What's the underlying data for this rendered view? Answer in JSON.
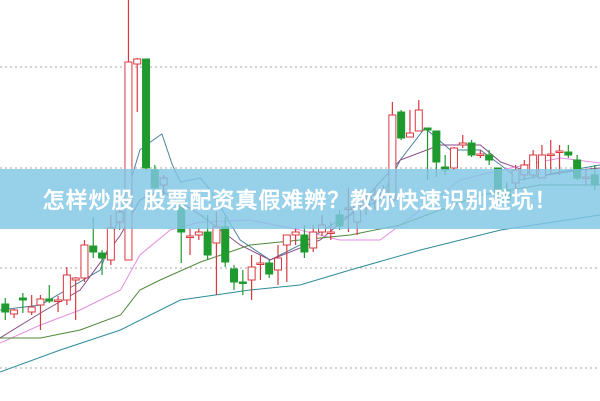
{
  "banner": {
    "title": "怎样炒股 股票配资真假难辨？教你快速识别避坑！"
  },
  "colors": {
    "up": "#d9383f",
    "down": "#1f9a2e",
    "grid": "#aaaaaa",
    "banner": "#80c6e4"
  },
  "chart_data": {
    "type": "candlestick",
    "title": "",
    "xlabel": "",
    "ylabel": "",
    "xlim": [
      -0.6,
      67.6
    ],
    "ylim": [
      0,
      400
    ],
    "grid": "horizontal dotted",
    "gridlines": [
      333,
      232,
      132,
      32
    ],
    "candle_fields": [
      "t",
      "open",
      "high",
      "low",
      "close"
    ],
    "candles": [
      [
        0,
        96,
        102,
        80,
        88
      ],
      [
        1,
        86,
        91,
        82,
        90
      ],
      [
        2,
        102,
        107,
        87,
        100
      ],
      [
        3,
        88,
        105,
        85,
        93
      ],
      [
        4,
        95,
        105,
        70,
        101
      ],
      [
        5,
        101,
        115,
        97,
        99
      ],
      [
        6,
        100,
        104,
        88,
        100
      ],
      [
        7,
        100,
        133,
        95,
        125
      ],
      [
        8,
        120,
        123,
        80,
        122
      ],
      [
        9,
        122,
        160,
        118,
        155
      ],
      [
        10,
        154,
        183,
        142,
        148
      ],
      [
        11,
        147,
        150,
        125,
        142
      ],
      [
        12,
        140,
        185,
        135,
        172
      ],
      [
        13,
        178,
        195,
        170,
        188
      ],
      [
        14,
        140,
        400,
        140,
        338
      ],
      [
        15,
        336,
        342,
        288,
        341
      ],
      [
        16,
        341,
        341,
        230,
        232
      ],
      [
        17,
        230,
        235,
        205,
        212
      ],
      [
        18,
        215,
        225,
        205,
        222
      ],
      [
        20,
        200,
        200,
        137,
        168
      ],
      [
        21,
        164,
        172,
        145,
        164
      ],
      [
        22,
        165,
        172,
        160,
        168
      ],
      [
        23,
        168,
        185,
        140,
        145
      ],
      [
        24,
        157,
        188,
        105,
        173
      ],
      [
        25,
        173,
        183,
        133,
        138
      ],
      [
        26,
        131,
        135,
        110,
        118
      ],
      [
        27,
        118,
        130,
        105,
        117
      ],
      [
        28,
        120,
        145,
        100,
        133
      ],
      [
        29,
        136,
        145,
        120,
        137
      ],
      [
        30,
        137,
        140,
        122,
        126
      ],
      [
        31,
        130,
        155,
        115,
        142
      ],
      [
        32,
        155,
        165,
        118,
        165
      ],
      [
        33,
        165,
        172,
        155,
        168
      ],
      [
        34,
        165,
        175,
        142,
        148
      ],
      [
        35,
        152,
        175,
        148,
        168
      ],
      [
        36,
        168,
        185,
        164,
        175
      ],
      [
        37,
        168,
        178,
        160,
        168
      ],
      [
        38,
        185,
        190,
        170,
        174
      ],
      [
        39,
        192,
        212,
        168,
        192
      ],
      [
        40,
        178,
        195,
        165,
        195
      ],
      [
        41,
        195,
        205,
        185,
        200
      ],
      [
        42,
        200,
        212,
        190,
        205
      ],
      [
        43,
        205,
        215,
        195,
        210
      ],
      [
        44,
        200,
        298,
        200,
        285
      ],
      [
        45,
        288,
        290,
        260,
        262
      ],
      [
        46,
        263,
        290,
        263,
        267
      ],
      [
        47,
        269,
        300,
        269,
        290
      ],
      [
        48,
        272,
        272,
        220,
        270
      ],
      [
        49,
        269,
        269,
        223,
        238
      ],
      [
        50,
        233,
        245,
        225,
        230
      ],
      [
        51,
        232,
        253,
        230,
        252
      ],
      [
        52,
        255,
        265,
        252,
        257
      ],
      [
        53,
        257,
        260,
        243,
        245
      ],
      [
        54,
        246,
        250,
        242,
        246
      ],
      [
        55,
        245,
        250,
        235,
        240
      ],
      [
        56,
        232,
        232,
        200,
        208
      ],
      [
        57,
        210,
        218,
        195,
        200
      ],
      [
        58,
        217,
        235,
        210,
        230
      ],
      [
        59,
        225,
        240,
        220,
        235
      ],
      [
        60,
        225,
        250,
        222,
        245
      ],
      [
        61,
        222,
        255,
        222,
        245
      ],
      [
        62,
        245,
        260,
        225,
        246
      ],
      [
        63,
        248,
        255,
        225,
        249
      ],
      [
        64,
        248,
        255,
        242,
        245
      ],
      [
        65,
        240,
        245,
        220,
        222
      ],
      [
        66,
        222,
        230,
        215,
        223
      ],
      [
        67,
        225,
        235,
        210,
        215
      ]
    ],
    "lines": [
      {
        "color": "#4a7fa0",
        "points": [
          [
            -0.6,
            90
          ],
          [
            4,
            95
          ],
          [
            10.8,
            130
          ],
          [
            13.6,
            200
          ],
          [
            15.3,
            250
          ],
          [
            16.5,
            258
          ],
          [
            17.8,
            266
          ],
          [
            19,
            235
          ],
          [
            19.9,
            218
          ],
          [
            22.2,
            222
          ],
          [
            23.3,
            210
          ],
          [
            26.7,
            160
          ],
          [
            30.1,
            140
          ],
          [
            33.5,
            155
          ],
          [
            38,
            180
          ],
          [
            42.6,
            200
          ],
          [
            44.9,
            240
          ],
          [
            47.7,
            272
          ],
          [
            50.6,
            250
          ],
          [
            54,
            250
          ],
          [
            56.3,
            235
          ],
          [
            58.5,
            220
          ],
          [
            63.1,
            228
          ],
          [
            67.6,
            235
          ]
        ]
      },
      {
        "color": "#8a4a86",
        "points": [
          [
            -0.6,
            62
          ],
          [
            4,
            87
          ],
          [
            8.5,
            110
          ],
          [
            13.1,
            165
          ],
          [
            15.3,
            200
          ],
          [
            17.6,
            210
          ],
          [
            22.2,
            185
          ],
          [
            26.7,
            155
          ],
          [
            30.1,
            140
          ],
          [
            35.8,
            160
          ],
          [
            39.2,
            185
          ],
          [
            44.9,
            240
          ],
          [
            49.4,
            255
          ],
          [
            54,
            255
          ],
          [
            56.3,
            238
          ],
          [
            60.8,
            224
          ],
          [
            65.3,
            230
          ],
          [
            67.6,
            232
          ]
        ]
      },
      {
        "color": "#e58ee0",
        "points": [
          [
            -0.6,
            57
          ],
          [
            4,
            75
          ],
          [
            8.5,
            90
          ],
          [
            13.1,
            110
          ],
          [
            15.3,
            145
          ],
          [
            18.75,
            170
          ],
          [
            22.2,
            178
          ],
          [
            27.8,
            180
          ],
          [
            33.5,
            170
          ],
          [
            38,
            160
          ],
          [
            42.6,
            160
          ],
          [
            47.2,
            190
          ],
          [
            51.7,
            220
          ],
          [
            56.3,
            230
          ],
          [
            63.1,
            242
          ],
          [
            67.6,
            237
          ]
        ]
      },
      {
        "color": "#4f8a3c",
        "points": [
          [
            -0.6,
            62
          ],
          [
            4,
            62
          ],
          [
            8.5,
            70
          ],
          [
            13.1,
            85
          ],
          [
            15.3,
            110
          ],
          [
            17.6,
            120
          ],
          [
            22.2,
            138
          ],
          [
            27.8,
            155
          ],
          [
            33.5,
            160
          ],
          [
            39.2,
            165
          ],
          [
            44.9,
            175
          ],
          [
            49.4,
            190
          ],
          [
            54,
            205
          ],
          [
            60.8,
            215
          ],
          [
            67.6,
            215
          ]
        ]
      },
      {
        "color": "#2e8c9a",
        "points": [
          [
            -0.6,
            28
          ],
          [
            6.25,
            50
          ],
          [
            13.1,
            70
          ],
          [
            19.9,
            100
          ],
          [
            27.8,
            110
          ],
          [
            33.5,
            115
          ],
          [
            39.2,
            130
          ],
          [
            47.2,
            150
          ],
          [
            56.3,
            170
          ],
          [
            67.6,
            185
          ]
        ]
      }
    ]
  }
}
